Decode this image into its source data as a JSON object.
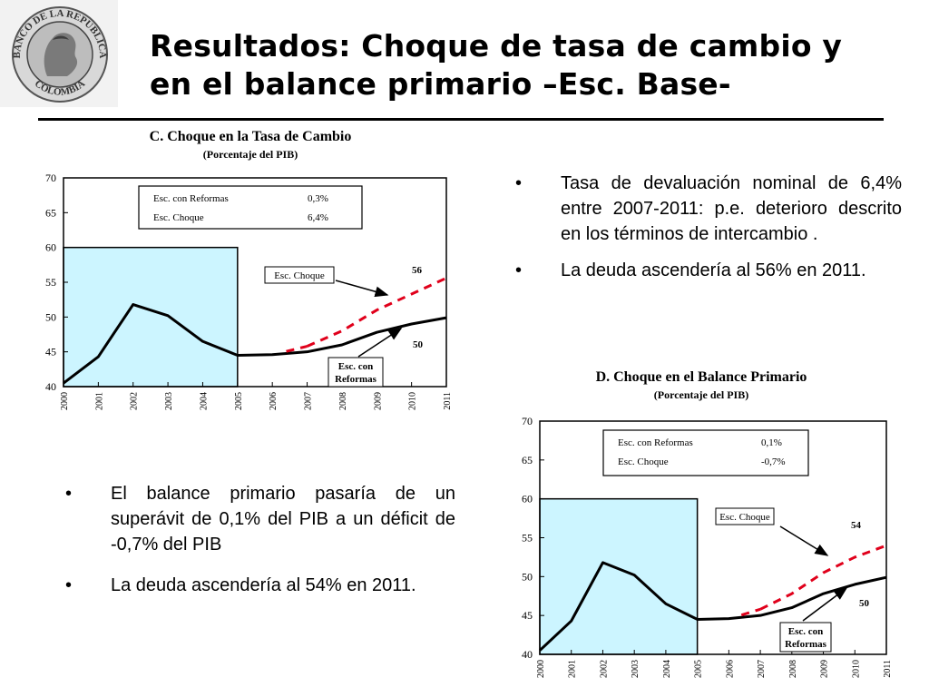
{
  "header": {
    "logo_text_top": "BANCO DE LA REPUBLICA",
    "logo_text_bottom": "COLOMBIA",
    "title_line1": "Resultados: Choque de tasa de cambio y",
    "title_line2": "en el balance primario –Esc. Base-"
  },
  "colors": {
    "shade_fill": "#ccf5ff",
    "base_line": "#000000",
    "shock_line": "#e0001b"
  },
  "bullets_top": [
    "Tasa de devaluación nominal de 6,4% entre 2007-2011: p.e. deterioro descrito en los términos de intercambio .",
    "La deuda ascendería al 56% en 2011."
  ],
  "bullets_bottom": [
    "El balance primario pasaría de un superávit de 0,1% del PIB a un déficit de -0,7% del PIB",
    "La deuda ascendería al 54% en 2011."
  ],
  "chart_data": [
    {
      "type": "line",
      "title": "C. Choque en la Tasa de Cambio",
      "subtitle": "(Porcentaje del PIB)",
      "x": [
        "2000",
        "2001",
        "2002",
        "2003",
        "2004",
        "2005",
        "2006",
        "2007",
        "2008",
        "2009",
        "2010",
        "2011"
      ],
      "ylim": [
        40,
        70
      ],
      "yticks": [
        40,
        45,
        50,
        55,
        60,
        65,
        70
      ],
      "shaded_range": [
        "2000",
        "2005"
      ],
      "shaded_top": 60,
      "series": [
        {
          "name": "Esc. con Reformas",
          "style": "solid",
          "values": [
            40.5,
            44.3,
            51.8,
            50.2,
            46.5,
            44.5,
            44.6,
            45.0,
            46.0,
            47.8,
            49.0,
            49.9
          ]
        },
        {
          "name": "Esc. Choque",
          "style": "dashed",
          "values": [
            null,
            null,
            null,
            null,
            null,
            null,
            null,
            45.8,
            48.0,
            51.0,
            53.3,
            55.6
          ]
        }
      ],
      "table": [
        {
          "label": "Esc. con Reformas",
          "value": "0,3%"
        },
        {
          "label": "Esc. Choque",
          "value": "6,4%"
        }
      ],
      "annotations": {
        "choque_label": "Esc. Choque",
        "reformas_line1": "Esc. con",
        "reformas_line2": "Reformas",
        "end_choque": "56",
        "end_reformas": "50"
      }
    },
    {
      "type": "line",
      "title": "D. Choque en el Balance Primario",
      "subtitle": "(Porcentaje del PIB)",
      "x": [
        "2000",
        "2001",
        "2002",
        "2003",
        "2004",
        "2005",
        "2006",
        "2007",
        "2008",
        "2009",
        "2010",
        "2011"
      ],
      "ylim": [
        40,
        70
      ],
      "yticks": [
        40,
        45,
        50,
        55,
        60,
        65,
        70
      ],
      "shaded_range": [
        "2000",
        "2005"
      ],
      "shaded_top": 60,
      "series": [
        {
          "name": "Esc. con Reformas",
          "style": "solid",
          "values": [
            40.5,
            44.3,
            51.8,
            50.2,
            46.5,
            44.5,
            44.6,
            45.0,
            46.0,
            47.8,
            49.0,
            49.9
          ]
        },
        {
          "name": "Esc. Choque",
          "style": "dashed",
          "values": [
            null,
            null,
            null,
            null,
            null,
            null,
            null,
            45.8,
            47.8,
            50.5,
            52.5,
            54.0
          ]
        }
      ],
      "table": [
        {
          "label": "Esc. con Reformas",
          "value": "0,1%"
        },
        {
          "label": "Esc. Choque",
          "value": "-0,7%"
        }
      ],
      "annotations": {
        "choque_label": "Esc. Choque",
        "reformas_line1": "Esc. con",
        "reformas_line2": "Reformas",
        "end_choque": "54",
        "end_reformas": "50"
      }
    }
  ]
}
